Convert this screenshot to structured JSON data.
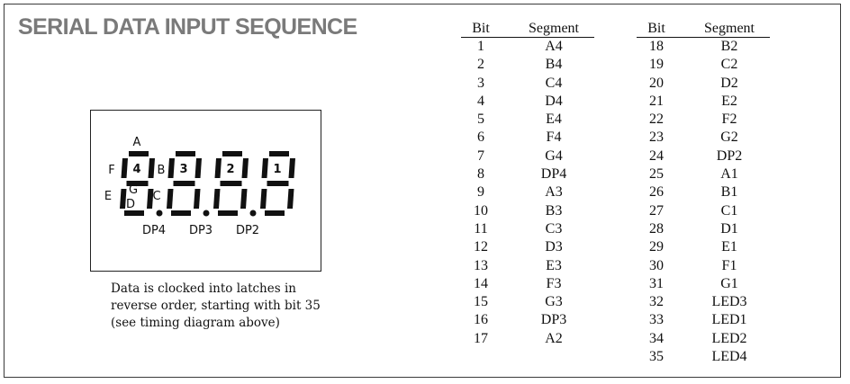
{
  "title": "SERIAL DATA INPUT SEQUENCE",
  "display": {
    "digits": [
      "4",
      "3",
      "2",
      "1"
    ],
    "segment_labels": {
      "a": "A",
      "b": "B",
      "c": "C",
      "d": "D",
      "e": "E",
      "f": "F",
      "g": "G"
    },
    "dp_labels": [
      "DP4",
      "DP3",
      "DP2"
    ],
    "segment_color": "#111111"
  },
  "caption": [
    "Data is clocked into latches in",
    "reverse order, starting with bit 35",
    "(see timing diagram above)"
  ],
  "table_headers": {
    "bit": "Bit",
    "segment": "Segment"
  },
  "table_left": [
    [
      "1",
      "A4"
    ],
    [
      "2",
      "B4"
    ],
    [
      "3",
      "C4"
    ],
    [
      "4",
      "D4"
    ],
    [
      "5",
      "E4"
    ],
    [
      "6",
      "F4"
    ],
    [
      "7",
      "G4"
    ],
    [
      "8",
      "DP4"
    ],
    [
      "9",
      "A3"
    ],
    [
      "10",
      "B3"
    ],
    [
      "11",
      "C3"
    ],
    [
      "12",
      "D3"
    ],
    [
      "13",
      "E3"
    ],
    [
      "14",
      "F3"
    ],
    [
      "15",
      "G3"
    ],
    [
      "16",
      "DP3"
    ],
    [
      "17",
      "A2"
    ]
  ],
  "table_right": [
    [
      "18",
      "B2"
    ],
    [
      "19",
      "C2"
    ],
    [
      "20",
      "D2"
    ],
    [
      "21",
      "E2"
    ],
    [
      "22",
      "F2"
    ],
    [
      "23",
      "G2"
    ],
    [
      "24",
      "DP2"
    ],
    [
      "25",
      "A1"
    ],
    [
      "26",
      "B1"
    ],
    [
      "27",
      "C1"
    ],
    [
      "28",
      "D1"
    ],
    [
      "29",
      "E1"
    ],
    [
      "30",
      "F1"
    ],
    [
      "31",
      "G1"
    ],
    [
      "32",
      "LED3"
    ],
    [
      "33",
      "LED1"
    ],
    [
      "34",
      "LED2"
    ],
    [
      "35",
      "LED4"
    ]
  ]
}
